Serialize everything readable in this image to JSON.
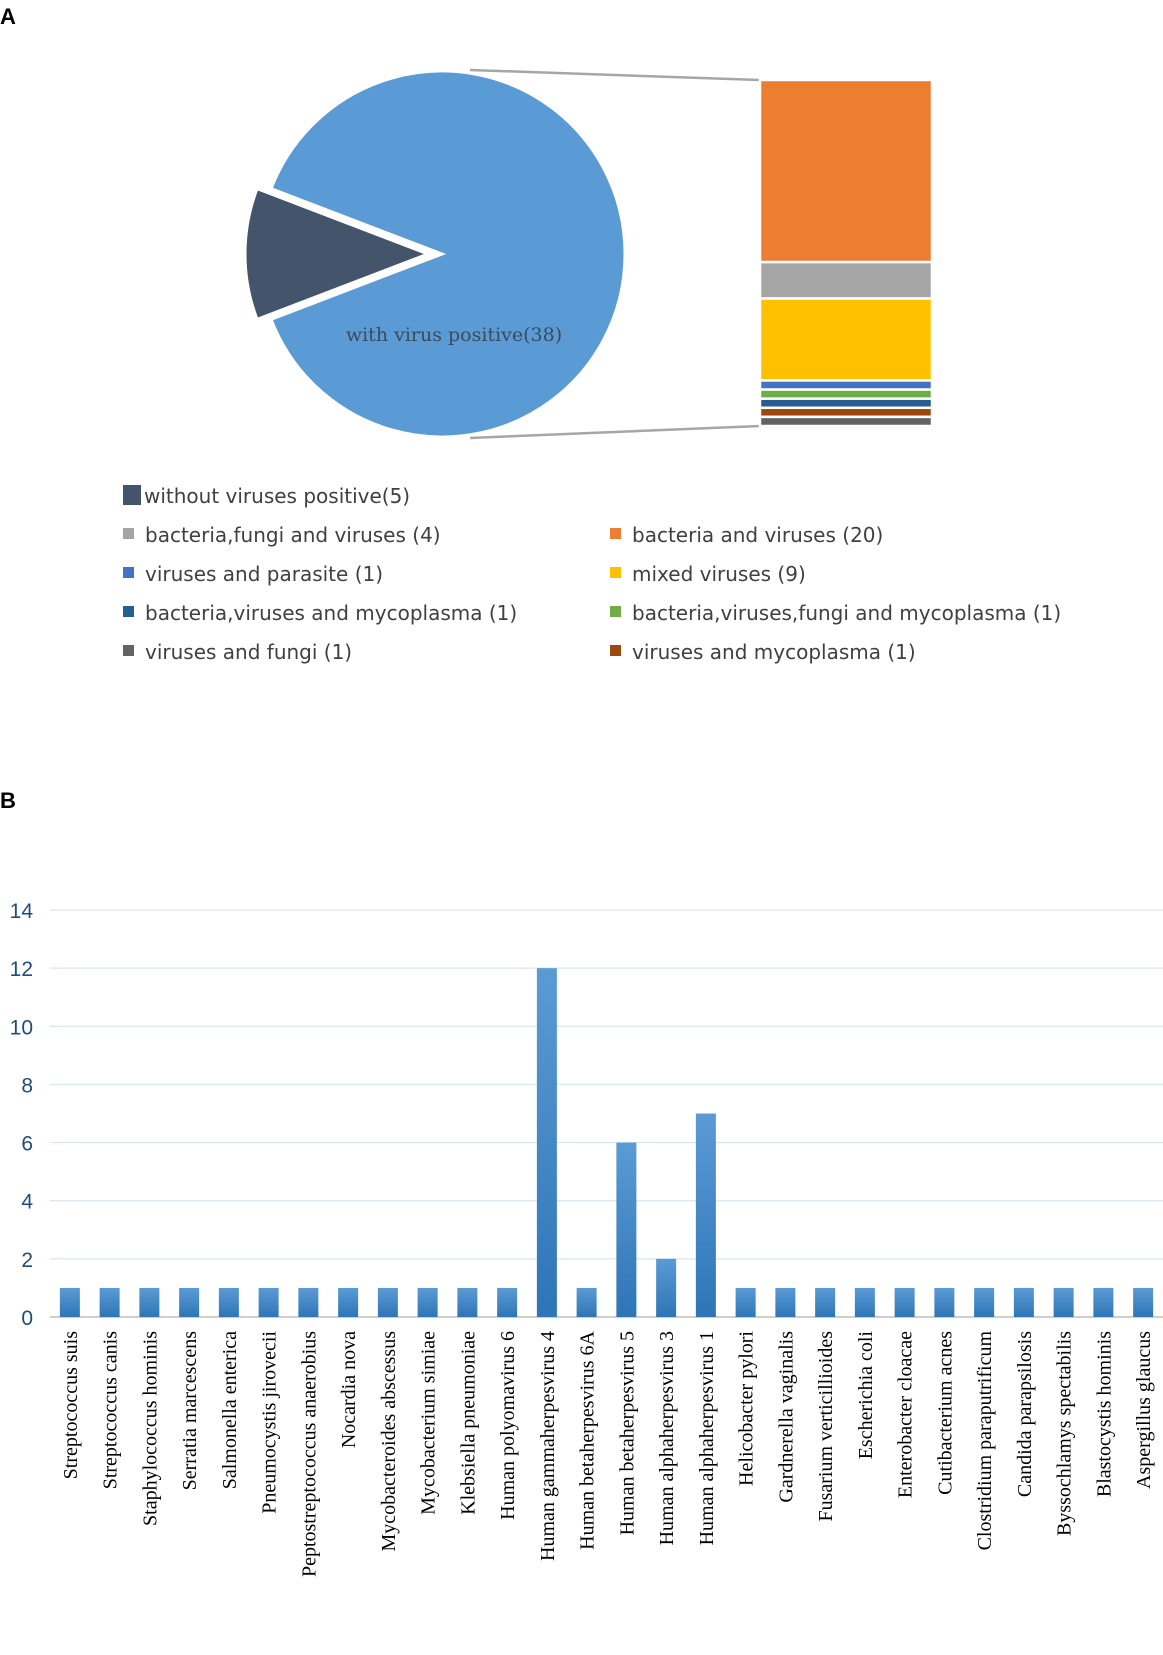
{
  "panel_labels": {
    "a": "A",
    "b": "B"
  },
  "chart_data": [
    {
      "type": "pie",
      "panel": "A",
      "slices": [
        {
          "label": "without viruses positive(5)",
          "value": 5,
          "color": "#44546a"
        },
        {
          "label": "with virus positive(38)",
          "value": 38,
          "color": "#5b9bd5"
        }
      ],
      "inner_slice_label": "with virus positive(38)",
      "breakdown_of": "with virus positive(38)",
      "breakdown": [
        {
          "label": "bacteria and viruses (20)",
          "value": 20,
          "color": "#ed7d31"
        },
        {
          "label": "bacteria,fungi and viruses (4)",
          "value": 4,
          "color": "#a5a5a5"
        },
        {
          "label": " mixed viruses (9)",
          "value": 9,
          "color": "#ffc000"
        },
        {
          "label": "viruses and parasite (1)",
          "value": 1,
          "color": "#4472c4"
        },
        {
          "label": "bacteria,viruses,fungi and mycoplasma (1)",
          "value": 1,
          "color": "#70ad47"
        },
        {
          "label": "bacteria,viruses and mycoplasma (1)",
          "value": 1,
          "color": "#255e91"
        },
        {
          "label": "viruses and mycoplasma (1)",
          "value": 1,
          "color": "#9e480e"
        },
        {
          "label": "viruses and fungi (1)",
          "value": 1,
          "color": "#636363"
        }
      ],
      "legend": [
        {
          "label": "without viruses positive(5)",
          "color": "#44546a"
        },
        {
          "label": "bacteria and viruses (20)",
          "color": "#ed7d31"
        },
        {
          "label": "bacteria,fungi and viruses (4)",
          "color": "#a5a5a5"
        },
        {
          "label": " mixed viruses (9)",
          "color": "#ffc000"
        },
        {
          "label": "viruses and parasite (1)",
          "color": "#4472c4"
        },
        {
          "label": "bacteria,viruses,fungi and mycoplasma (1)",
          "color": "#70ad47"
        },
        {
          "label": "bacteria,viruses and mycoplasma (1)",
          "color": "#255e91"
        },
        {
          "label": "viruses and mycoplasma (1)",
          "color": "#9e480e"
        },
        {
          "label": "viruses and fungi (1)",
          "color": "#636363"
        }
      ],
      "legend_placement": "bottom"
    },
    {
      "type": "bar",
      "panel": "B",
      "categories": [
        "Streptococcus suis",
        "Streptococcus canis",
        "Staphylococcus hominis",
        "Serratia marcescens",
        "Salmonella enterica",
        "Pneumocystis jirovecii",
        "Peptostreptococcus anaerobius",
        "Nocardia nova",
        "Mycobacteroides abscessus",
        "Mycobacterium simiae",
        "Klebsiella pneumoniae",
        "Human polyomavirus 6",
        "Human gammaherpesvirus 4",
        "Human betaherpesvirus 6A",
        "Human betaherpesvirus 5",
        "Human alphaherpesvirus 3",
        "Human alphaherpesvirus 1",
        "Helicobacter pylori",
        "Gardnerella vaginalis",
        "Fusarium verticillioides",
        "Escherichia coli",
        "Enterobacter cloacae",
        "Cutibacterium acnes",
        "Clostridium paraputrificum",
        "Candida parapsilosis",
        "Byssochlamys spectabilis",
        "Blastocystis hominis",
        "Aspergillus glaucus"
      ],
      "values": [
        1,
        1,
        1,
        1,
        1,
        1,
        1,
        1,
        1,
        1,
        1,
        1,
        12,
        1,
        6,
        2,
        7,
        1,
        1,
        1,
        1,
        1,
        1,
        1,
        1,
        1,
        1,
        1
      ],
      "ylim": [
        0,
        14
      ],
      "yticks": [
        0,
        2,
        4,
        6,
        8,
        10,
        12,
        14
      ],
      "grid": true,
      "bar_color": "#5b9bd5",
      "bar_color_dark": "#2e75b6",
      "xlabel": "",
      "ylabel": ""
    }
  ]
}
